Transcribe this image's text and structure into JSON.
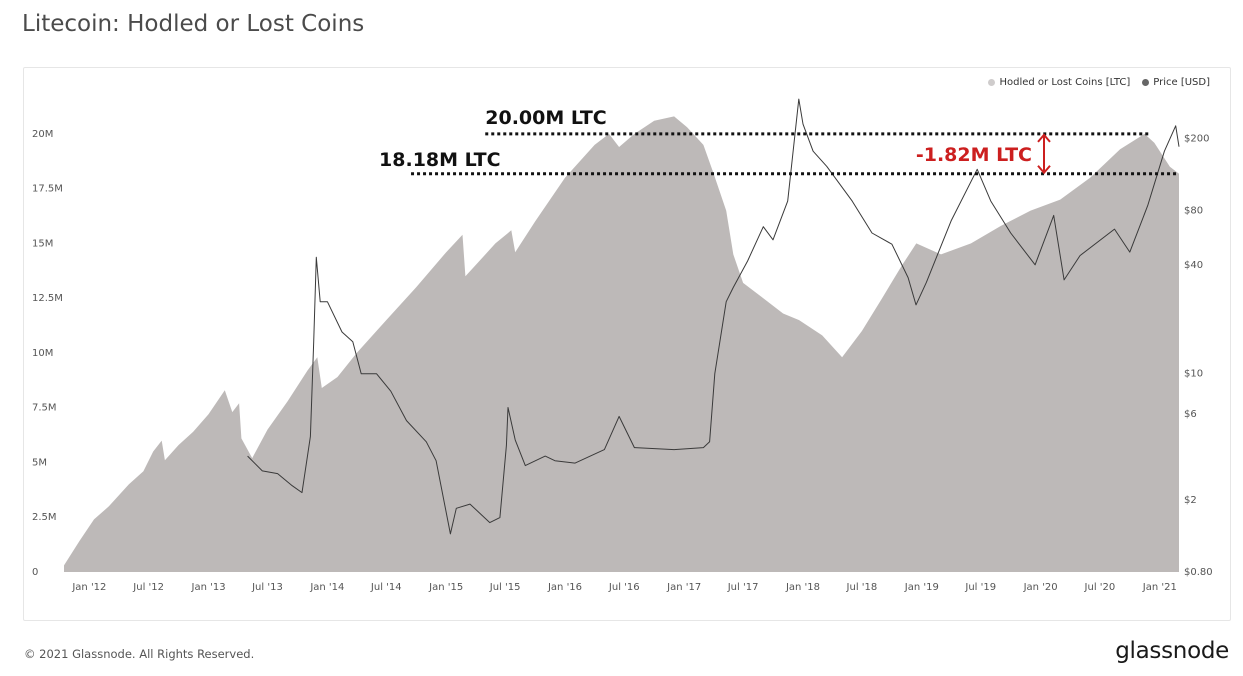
{
  "page": {
    "title": "Litecoin: Hodled or Lost Coins",
    "copyright": "© 2021 Glassnode. All Rights Reserved.",
    "logo": "glassnode"
  },
  "colors": {
    "area": "#bdb9b8",
    "price_line": "#3a3a3a",
    "annotation_black": "#111111",
    "annotation_red": "#cc1f1f",
    "legend_area": "#cfcccc",
    "legend_price": "#666666"
  },
  "chart_data": {
    "type": "area",
    "title": "Litecoin: Hodled or Lost Coins",
    "legend": [
      {
        "name": "Hodled or Lost Coins [LTC]",
        "color": "#cfcccc"
      },
      {
        "name": "Price [USD]",
        "color": "#666666"
      }
    ],
    "legend_position": "top-right",
    "grid": false,
    "x_ticks": [
      "Jan '12",
      "Jul '12",
      "Jan '13",
      "Jul '13",
      "Jan '14",
      "Jul '14",
      "Jan '15",
      "Jul '15",
      "Jan '16",
      "Jul '16",
      "Jan '17",
      "Jul '17",
      "Jan '18",
      "Jul '18",
      "Jan '19",
      "Jul '19",
      "Jan '20",
      "Jul '20",
      "Jan '21"
    ],
    "x_range": [
      "2011-10-15",
      "2021-03-01"
    ],
    "y_left": {
      "ticks": [
        "0",
        "2.5M",
        "5M",
        "7.5M",
        "10M",
        "12.5M",
        "15M",
        "17.5M",
        "20M"
      ],
      "range": [
        0,
        21000000
      ]
    },
    "y_right": {
      "scale": "log",
      "ticks": [
        "$0.80",
        "$2",
        "$6",
        "$10",
        "$40",
        "$80",
        "$200"
      ],
      "tick_values": [
        0.8,
        2,
        6,
        10,
        40,
        80,
        200
      ],
      "range": [
        0.8,
        280
      ]
    },
    "series": [
      {
        "name": "Hodled or Lost Coins [LTC]",
        "axis": "left",
        "points": [
          [
            "2011-10-15",
            300000
          ],
          [
            "2011-12-01",
            1400000
          ],
          [
            "2012-01-15",
            2400000
          ],
          [
            "2012-03-01",
            3000000
          ],
          [
            "2012-05-01",
            4000000
          ],
          [
            "2012-06-15",
            4600000
          ],
          [
            "2012-07-15",
            5500000
          ],
          [
            "2012-08-10",
            6000000
          ],
          [
            "2012-08-20",
            5100000
          ],
          [
            "2012-10-01",
            5800000
          ],
          [
            "2012-11-15",
            6400000
          ],
          [
            "2013-01-01",
            7200000
          ],
          [
            "2013-02-20",
            8300000
          ],
          [
            "2013-03-15",
            7300000
          ],
          [
            "2013-04-05",
            7700000
          ],
          [
            "2013-04-12",
            6100000
          ],
          [
            "2013-05-15",
            5200000
          ],
          [
            "2013-07-01",
            6500000
          ],
          [
            "2013-09-01",
            7800000
          ],
          [
            "2013-11-01",
            9200000
          ],
          [
            "2013-12-01",
            9800000
          ],
          [
            "2013-12-15",
            8400000
          ],
          [
            "2014-02-01",
            8900000
          ],
          [
            "2014-04-01",
            10000000
          ],
          [
            "2014-07-01",
            11500000
          ],
          [
            "2014-10-01",
            13000000
          ],
          [
            "2015-01-01",
            14600000
          ],
          [
            "2015-02-20",
            15400000
          ],
          [
            "2015-03-01",
            13500000
          ],
          [
            "2015-04-01",
            14000000
          ],
          [
            "2015-06-01",
            15000000
          ],
          [
            "2015-07-20",
            15600000
          ],
          [
            "2015-08-01",
            14600000
          ],
          [
            "2015-10-01",
            16000000
          ],
          [
            "2016-01-01",
            18000000
          ],
          [
            "2016-04-01",
            19500000
          ],
          [
            "2016-05-15",
            20000000
          ],
          [
            "2016-06-15",
            19400000
          ],
          [
            "2016-08-01",
            20000000
          ],
          [
            "2016-10-01",
            20600000
          ],
          [
            "2016-12-01",
            20800000
          ],
          [
            "2017-01-10",
            20300000
          ],
          [
            "2017-03-01",
            19500000
          ],
          [
            "2017-04-01",
            18200000
          ],
          [
            "2017-05-10",
            16500000
          ],
          [
            "2017-06-01",
            14500000
          ],
          [
            "2017-07-01",
            13200000
          ],
          [
            "2017-09-01",
            12500000
          ],
          [
            "2017-11-01",
            11800000
          ],
          [
            "2017-12-20",
            11500000
          ],
          [
            "2018-03-01",
            10800000
          ],
          [
            "2018-05-01",
            9800000
          ],
          [
            "2018-07-01",
            11000000
          ],
          [
            "2018-09-01",
            12500000
          ],
          [
            "2018-11-01",
            14000000
          ],
          [
            "2018-12-15",
            15000000
          ],
          [
            "2019-03-01",
            14500000
          ],
          [
            "2019-06-01",
            15000000
          ],
          [
            "2019-09-01",
            15800000
          ],
          [
            "2019-12-01",
            16500000
          ],
          [
            "2020-03-01",
            17000000
          ],
          [
            "2020-06-01",
            18000000
          ],
          [
            "2020-09-01",
            19300000
          ],
          [
            "2020-11-15",
            20000000
          ],
          [
            "2020-12-15",
            19600000
          ],
          [
            "2021-02-01",
            18500000
          ],
          [
            "2021-03-01",
            18180000
          ]
        ]
      },
      {
        "name": "Price [USD]",
        "axis": "right",
        "points": [
          [
            "2013-05-01",
            3.5
          ],
          [
            "2013-06-15",
            2.9
          ],
          [
            "2013-08-01",
            2.8
          ],
          [
            "2013-09-15",
            2.4
          ],
          [
            "2013-10-15",
            2.2
          ],
          [
            "2013-11-10",
            4.5
          ],
          [
            "2013-11-20",
            15
          ],
          [
            "2013-11-28",
            44
          ],
          [
            "2013-12-10",
            25
          ],
          [
            "2014-01-01",
            25
          ],
          [
            "2014-02-15",
            17
          ],
          [
            "2014-03-20",
            15
          ],
          [
            "2014-04-15",
            10
          ],
          [
            "2014-06-01",
            10
          ],
          [
            "2014-07-15",
            8
          ],
          [
            "2014-09-01",
            5.5
          ],
          [
            "2014-11-01",
            4.2
          ],
          [
            "2014-12-01",
            3.3
          ],
          [
            "2015-01-14",
            1.3
          ],
          [
            "2015-02-01",
            1.8
          ],
          [
            "2015-03-15",
            1.9
          ],
          [
            "2015-05-15",
            1.5
          ],
          [
            "2015-06-15",
            1.6
          ],
          [
            "2015-07-05",
            4
          ],
          [
            "2015-07-10",
            6.5
          ],
          [
            "2015-08-01",
            4.3
          ],
          [
            "2015-09-01",
            3.1
          ],
          [
            "2015-11-01",
            3.5
          ],
          [
            "2015-12-01",
            3.3
          ],
          [
            "2016-02-01",
            3.2
          ],
          [
            "2016-05-01",
            3.8
          ],
          [
            "2016-06-15",
            5.8
          ],
          [
            "2016-08-01",
            3.9
          ],
          [
            "2016-12-01",
            3.8
          ],
          [
            "2017-03-01",
            3.9
          ],
          [
            "2017-03-20",
            4.2
          ],
          [
            "2017-04-05",
            10
          ],
          [
            "2017-05-10",
            25
          ],
          [
            "2017-06-01",
            30
          ],
          [
            "2017-07-15",
            42
          ],
          [
            "2017-09-01",
            65
          ],
          [
            "2017-10-01",
            55
          ],
          [
            "2017-11-15",
            90
          ],
          [
            "2017-12-19",
            330
          ],
          [
            "2018-01-01",
            240
          ],
          [
            "2018-02-01",
            170
          ],
          [
            "2018-03-15",
            140
          ],
          [
            "2018-06-01",
            90
          ],
          [
            "2018-08-01",
            60
          ],
          [
            "2018-10-01",
            52
          ],
          [
            "2018-11-20",
            34
          ],
          [
            "2018-12-14",
            24
          ],
          [
            "2019-01-15",
            32
          ],
          [
            "2019-04-01",
            70
          ],
          [
            "2019-06-20",
            135
          ],
          [
            "2019-08-01",
            90
          ],
          [
            "2019-10-01",
            60
          ],
          [
            "2019-12-15",
            40
          ],
          [
            "2020-02-10",
            75
          ],
          [
            "2020-03-13",
            33
          ],
          [
            "2020-05-01",
            45
          ],
          [
            "2020-08-15",
            63
          ],
          [
            "2020-10-01",
            47
          ],
          [
            "2020-11-25",
            85
          ],
          [
            "2021-01-15",
            170
          ],
          [
            "2021-02-19",
            235
          ],
          [
            "2021-03-01",
            180
          ]
        ]
      }
    ],
    "annotations": [
      {
        "text": "20.00M LTC",
        "value": 20000000,
        "color": "#111111",
        "from": "2015-05-01",
        "to": "2020-12-01"
      },
      {
        "text": "18.18M LTC",
        "value": 18180000,
        "color": "#111111",
        "from": "2014-09-15",
        "to": "2021-03-01"
      },
      {
        "text": "-1.82M LTC",
        "color": "#cc1f1f",
        "from_value": 20000000,
        "to_value": 18180000
      }
    ]
  }
}
